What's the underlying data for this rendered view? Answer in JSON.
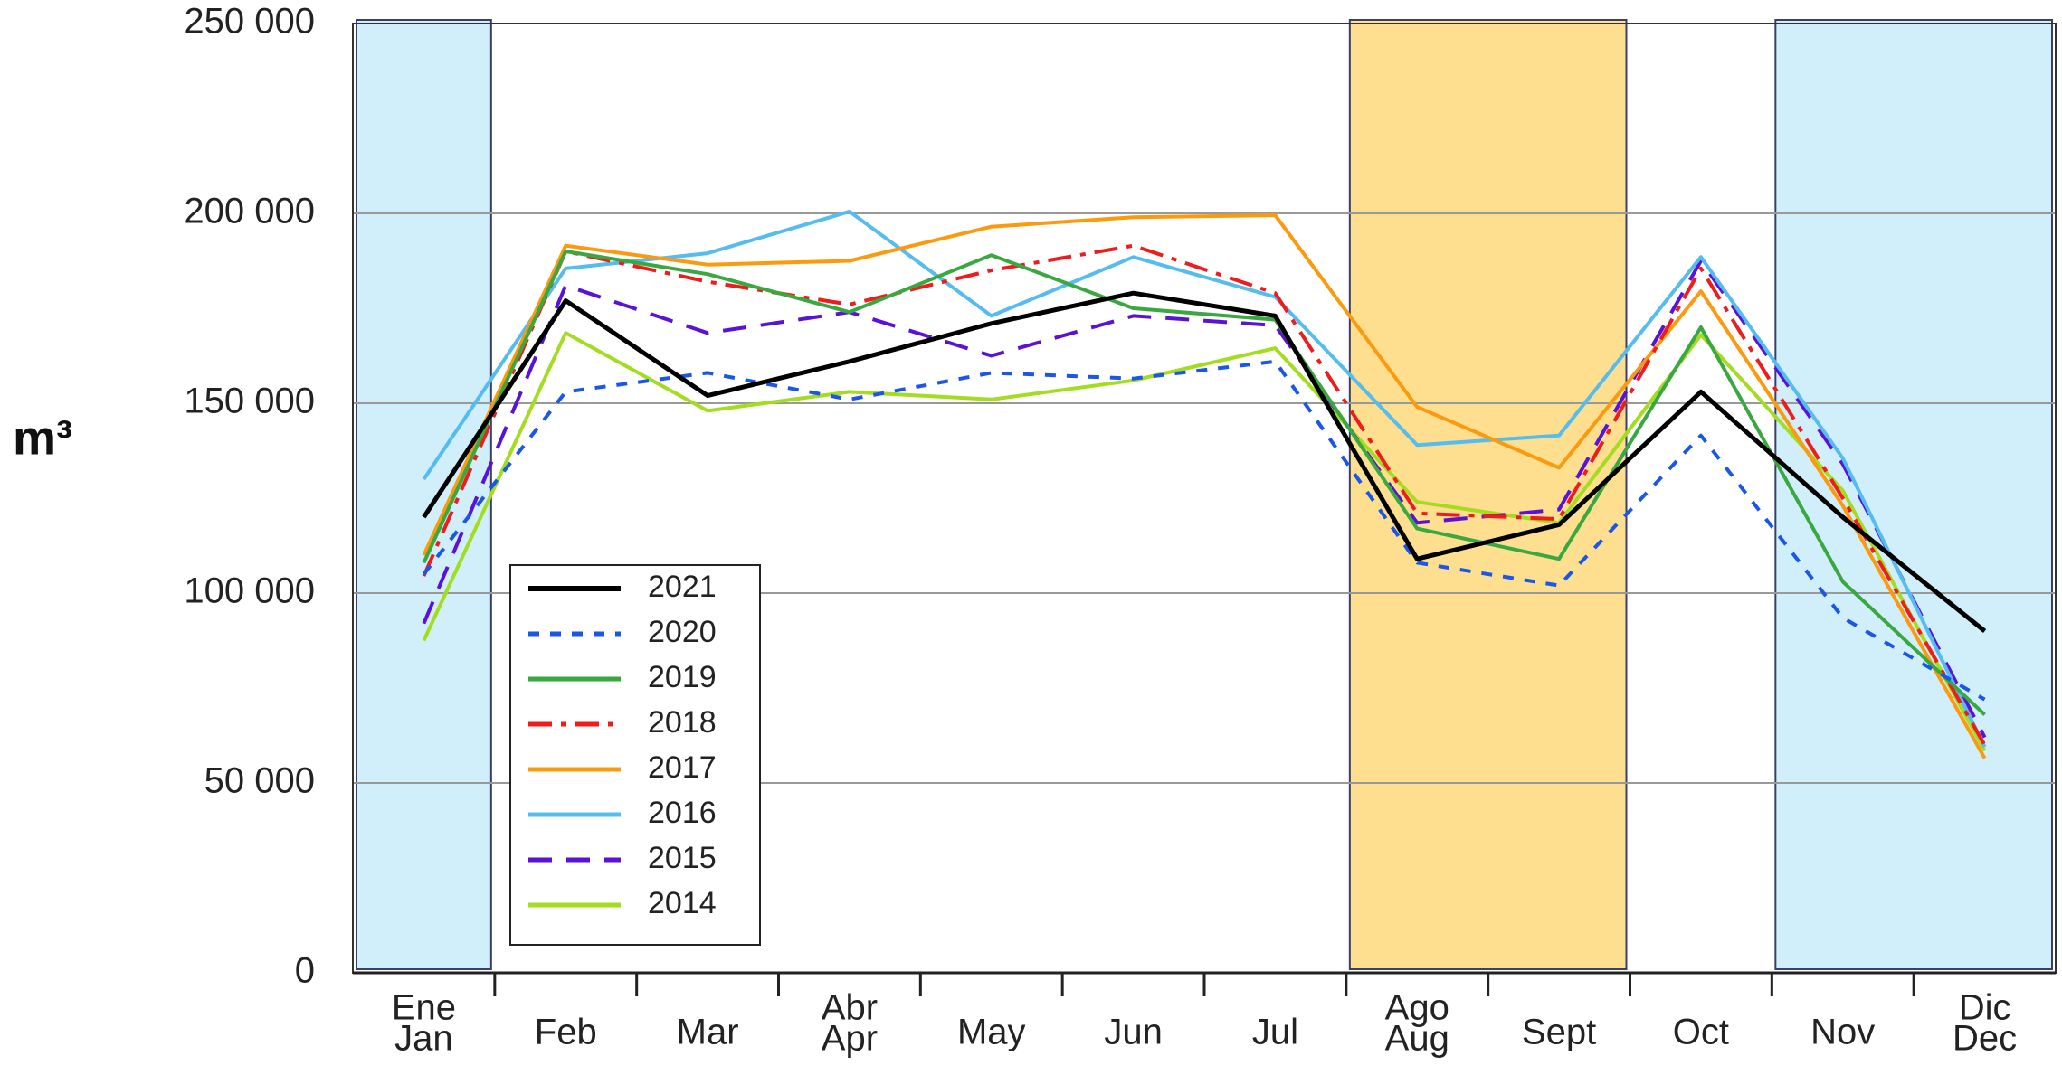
{
  "chart_data": {
    "type": "line",
    "y_label": "m³",
    "categories": [
      [
        "Ene",
        "Jan"
      ],
      [
        "Feb"
      ],
      [
        "Mar"
      ],
      [
        "Abr",
        "Apr"
      ],
      [
        "May"
      ],
      [
        "Jun"
      ],
      [
        "Jul"
      ],
      [
        "Ago",
        "Aug"
      ],
      [
        "Sept"
      ],
      [
        "Oct"
      ],
      [
        "Nov"
      ],
      [
        "Dic",
        "Dec"
      ]
    ],
    "ylim": [
      0,
      250000
    ],
    "yticks": [
      0,
      {
        "value": 50000,
        "label": "50 000"
      },
      {
        "value": 100000,
        "label": "100 000"
      },
      {
        "value": 150000,
        "label": "150 000"
      },
      {
        "value": 200000,
        "label": "200 000"
      },
      {
        "value": 250000,
        "label": "250 000"
      }
    ],
    "grid": true,
    "legend": "lower left",
    "bands": [
      {
        "from": 0,
        "to": 0,
        "color": "#d1eefb"
      },
      {
        "from": 7,
        "to": 8,
        "color": "#fddf8f"
      },
      {
        "from": 10,
        "to": 11,
        "color": "#d1eefb"
      }
    ],
    "series": [
      {
        "name": "2021",
        "color": "#000000",
        "style": "solid",
        "width": 5,
        "values": [
          120000,
          177000,
          152000,
          161000,
          171000,
          179000,
          173000,
          109000,
          118000,
          153000,
          120000,
          90000
        ]
      },
      {
        "name": "2020",
        "color": "#1a56e8",
        "style": "dotted",
        "width": 4,
        "values": [
          105000,
          153000,
          158000,
          151000,
          158000,
          156500,
          161000,
          108000,
          102000,
          141500,
          93500,
          72000
        ]
      },
      {
        "name": "2019",
        "color": "#3aa840",
        "style": "solid",
        "width": 4,
        "values": [
          108000,
          190000,
          184000,
          174000,
          189000,
          175000,
          172000,
          117000,
          109000,
          170000,
          103000,
          68000
        ]
      },
      {
        "name": "2018",
        "color": "#ee1c1c",
        "style": "dashdot",
        "width": 4,
        "values": [
          104500,
          190000,
          182000,
          176000,
          185000,
          191500,
          179000,
          121000,
          119500,
          185500,
          125000,
          60000
        ]
      },
      {
        "name": "2017",
        "color": "#fb9a0e",
        "style": "solid",
        "width": 4,
        "values": [
          110000,
          191500,
          186500,
          187500,
          196500,
          199000,
          199500,
          149000,
          133000,
          179500,
          123000,
          56500
        ]
      },
      {
        "name": "2016",
        "color": "#55bcf0",
        "style": "solid",
        "width": 4,
        "values": [
          130000,
          185500,
          189500,
          200500,
          173000,
          188500,
          178000,
          139000,
          141500,
          188500,
          135500,
          59500
        ]
      },
      {
        "name": "2015",
        "color": "#5a12d6",
        "style": "dashed",
        "width": 4,
        "values": [
          92000,
          181000,
          168500,
          174000,
          162500,
          173000,
          170500,
          118500,
          122000,
          187500,
          134000,
          62000
        ]
      },
      {
        "name": "2014",
        "color": "#a4dc20",
        "style": "solid",
        "width": 4,
        "values": [
          87500,
          168500,
          148000,
          153000,
          151000,
          156000,
          164500,
          124000,
          118500,
          168000,
          127000,
          58500
        ]
      }
    ]
  }
}
